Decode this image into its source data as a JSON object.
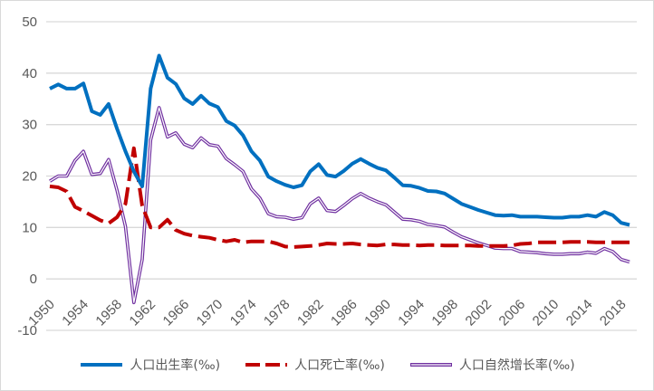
{
  "chart_data": {
    "type": "line",
    "title": "",
    "xlabel": "",
    "ylabel": "",
    "ylim": [
      -10,
      50
    ],
    "yticks": [
      -10,
      0,
      10,
      20,
      30,
      40,
      50
    ],
    "xtick_labels": [
      "1950",
      "1954",
      "1958",
      "1962",
      "1966",
      "1970",
      "1974",
      "1978",
      "1982",
      "1986",
      "1990",
      "1994",
      "1998",
      "2002",
      "2006",
      "2010",
      "2014",
      "2018"
    ],
    "grid": true,
    "legend_position": "bottom",
    "x": [
      1950,
      1951,
      1952,
      1953,
      1954,
      1955,
      1956,
      1957,
      1958,
      1959,
      1960,
      1961,
      1962,
      1963,
      1964,
      1965,
      1966,
      1967,
      1968,
      1969,
      1970,
      1971,
      1972,
      1973,
      1974,
      1975,
      1976,
      1977,
      1978,
      1979,
      1980,
      1981,
      1982,
      1983,
      1984,
      1985,
      1986,
      1987,
      1988,
      1989,
      1990,
      1991,
      1992,
      1993,
      1994,
      1995,
      1996,
      1997,
      1998,
      1999,
      2000,
      2001,
      2002,
      2003,
      2004,
      2005,
      2006,
      2007,
      2008,
      2009,
      2010,
      2011,
      2012,
      2013,
      2014,
      2015,
      2016,
      2017,
      2018,
      2019
    ],
    "series": [
      {
        "name": "人口出生率(‰)",
        "color": "#0070c0",
        "style": "solid",
        "values": [
          37.0,
          37.8,
          37.0,
          37.0,
          38.0,
          32.6,
          31.9,
          34.0,
          29.2,
          24.8,
          20.9,
          18.0,
          37.0,
          43.4,
          39.1,
          37.9,
          35.1,
          34.0,
          35.6,
          34.1,
          33.4,
          30.7,
          29.8,
          27.9,
          24.8,
          23.0,
          19.9,
          19.0,
          18.3,
          17.8,
          18.2,
          20.9,
          22.3,
          20.2,
          19.9,
          21.0,
          22.4,
          23.3,
          22.4,
          21.6,
          21.1,
          19.7,
          18.2,
          18.1,
          17.7,
          17.1,
          17.0,
          16.6,
          15.6,
          14.6,
          14.0,
          13.4,
          12.9,
          12.4,
          12.3,
          12.4,
          12.1,
          12.1,
          12.1,
          12.0,
          11.9,
          11.9,
          12.1,
          12.1,
          12.4,
          12.1,
          13.0,
          12.4,
          10.9,
          10.5
        ]
      },
      {
        "name": "人口死亡率(‰)",
        "color": "#c00000",
        "style": "dashed",
        "values": [
          18.0,
          17.8,
          17.0,
          14.0,
          13.2,
          12.3,
          11.4,
          10.8,
          12.0,
          14.6,
          25.4,
          14.2,
          10.0,
          10.0,
          11.5,
          9.5,
          8.8,
          8.4,
          8.2,
          8.0,
          7.6,
          7.3,
          7.6,
          7.1,
          7.3,
          7.3,
          7.3,
          6.9,
          6.3,
          6.2,
          6.3,
          6.4,
          6.6,
          6.9,
          6.8,
          6.8,
          6.9,
          6.7,
          6.6,
          6.5,
          6.7,
          6.7,
          6.6,
          6.6,
          6.5,
          6.6,
          6.6,
          6.5,
          6.5,
          6.5,
          6.5,
          6.4,
          6.4,
          6.4,
          6.4,
          6.5,
          6.8,
          6.9,
          7.1,
          7.1,
          7.1,
          7.1,
          7.2,
          7.2,
          7.2,
          7.1,
          7.1,
          7.1,
          7.1,
          7.1
        ]
      },
      {
        "name": "人口自然增长率(‰)",
        "color": "#7030a0",
        "style": "double",
        "values": [
          19.0,
          20.0,
          20.0,
          23.0,
          24.8,
          20.3,
          20.5,
          23.2,
          17.2,
          10.2,
          -4.6,
          3.8,
          27.0,
          33.3,
          27.6,
          28.4,
          26.2,
          25.5,
          27.4,
          26.1,
          25.8,
          23.4,
          22.2,
          20.9,
          17.5,
          15.7,
          12.7,
          12.1,
          12.0,
          11.6,
          11.9,
          14.6,
          15.7,
          13.3,
          13.1,
          14.3,
          15.6,
          16.6,
          15.7,
          15.0,
          14.4,
          13.0,
          11.6,
          11.5,
          11.2,
          10.6,
          10.4,
          10.1,
          9.1,
          8.2,
          7.6,
          7.0,
          6.5,
          6.0,
          5.9,
          5.9,
          5.3,
          5.2,
          5.1,
          4.9,
          4.8,
          4.8,
          4.9,
          4.9,
          5.2,
          5.0,
          5.9,
          5.3,
          3.8,
          3.3
        ]
      }
    ]
  }
}
